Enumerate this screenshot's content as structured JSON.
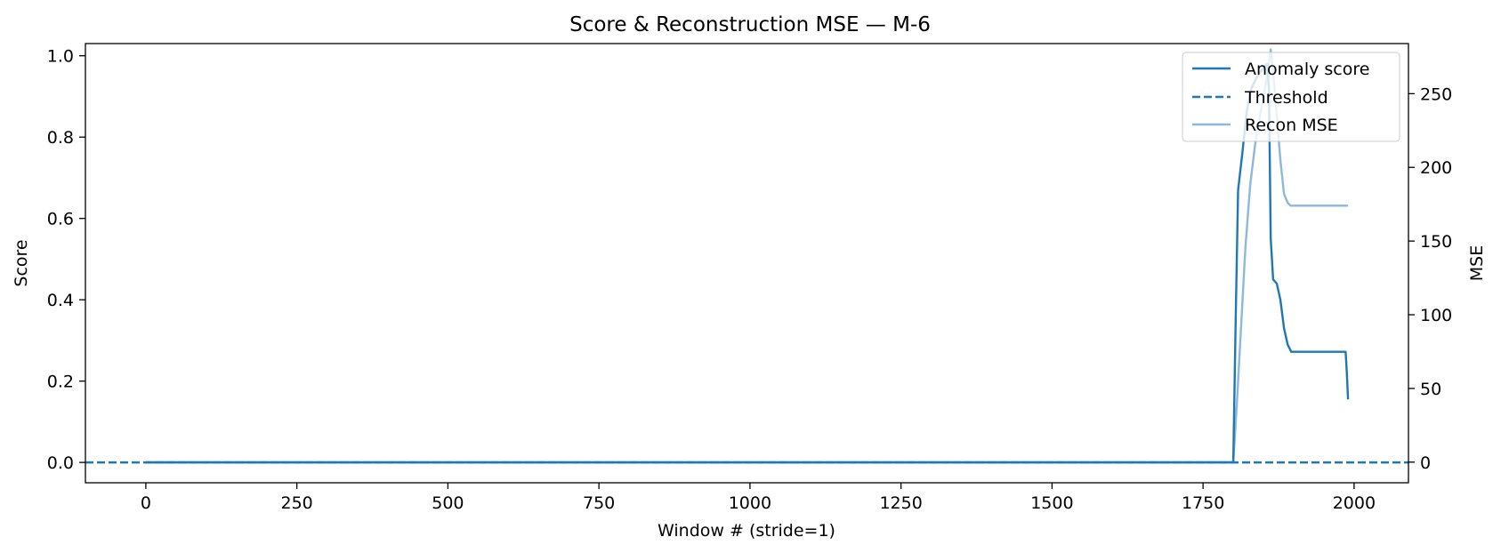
{
  "chart_data": {
    "type": "line",
    "title": "Score & Reconstruction MSE — M-6",
    "xlabel": "Window # (stride=1)",
    "ylabel": "Score",
    "y2label": "MSE",
    "xlim": [
      -100,
      2090
    ],
    "ylim": [
      -0.05,
      1.03
    ],
    "y2lim": [
      -14,
      284
    ],
    "xticks": [
      0,
      250,
      500,
      750,
      1000,
      1250,
      1500,
      1750,
      2000
    ],
    "yticks": [
      0.0,
      0.2,
      0.4,
      0.6,
      0.8,
      1.0
    ],
    "y2ticks": [
      0,
      50,
      100,
      150,
      200,
      250
    ],
    "legend_position": "upper right",
    "series": [
      {
        "name": "Anomaly score",
        "axis": "left",
        "style": "solid",
        "color": "#1f77b4",
        "x": [
          0,
          1800,
          1804,
          1808,
          1815,
          1822,
          1830,
          1840,
          1850,
          1856,
          1859,
          1862,
          1866,
          1872,
          1878,
          1884,
          1890,
          1896,
          1902,
          1950,
          1986,
          1988,
          1990
        ],
        "y": [
          0.0,
          0.0,
          0.35,
          0.67,
          0.76,
          0.86,
          0.92,
          0.95,
          0.97,
          0.98,
          0.92,
          0.55,
          0.45,
          0.44,
          0.4,
          0.33,
          0.29,
          0.272,
          0.272,
          0.272,
          0.272,
          0.22,
          0.155
        ]
      },
      {
        "name": "Threshold",
        "axis": "left",
        "style": "dashed",
        "color": "#1f77b4",
        "x": [
          -100,
          2090
        ],
        "y": [
          0.0,
          0.0
        ]
      },
      {
        "name": "Recon MSE",
        "axis": "right",
        "style": "solid",
        "color": "#8db8dc",
        "x": [
          0,
          1800,
          1806,
          1812,
          1820,
          1828,
          1836,
          1844,
          1852,
          1858,
          1862,
          1866,
          1872,
          1878,
          1884,
          1890,
          1895,
          1900,
          1950,
          1990
        ],
        "y": [
          0,
          0,
          40,
          85,
          145,
          188,
          215,
          235,
          252,
          268,
          280,
          265,
          235,
          205,
          182,
          176,
          174,
          174,
          174,
          174
        ]
      }
    ]
  }
}
